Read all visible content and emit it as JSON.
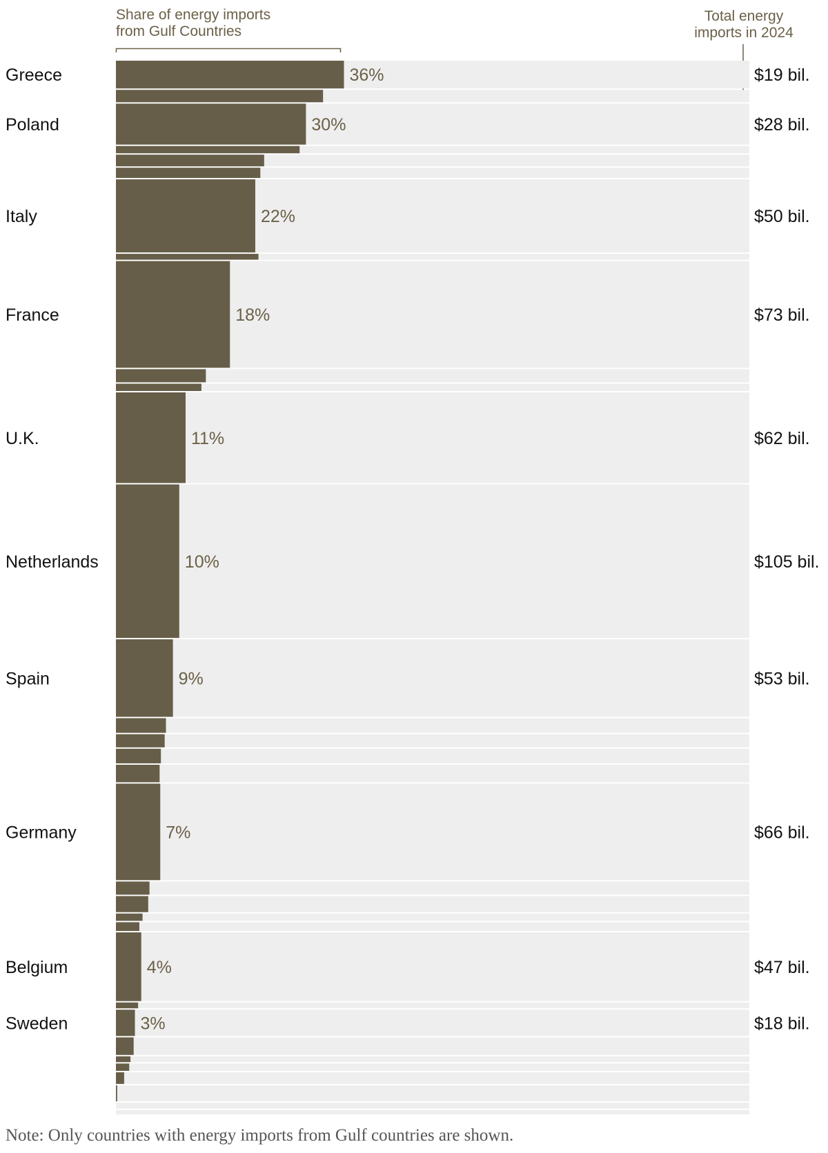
{
  "chart_data": {
    "type": "bar",
    "header_left_line1": "Share of energy imports",
    "header_left_line2": "from Gulf Countries",
    "header_right_line1": "Total energy",
    "header_right_line2": "imports in 2024",
    "note": "Note: Only countries with energy imports from Gulf countries are shown.",
    "bar_color": "#665e48",
    "track_color": "#eeeeee",
    "xlim": [
      0,
      100
    ],
    "rows": [
      {
        "share": 36,
        "total": 19,
        "country": "Greece",
        "pct_label": "36%",
        "total_label": "$19 bil."
      },
      {
        "share": 32.7,
        "total": 8.5
      },
      {
        "share": 30,
        "total": 28,
        "country": "Poland",
        "pct_label": "30%",
        "total_label": "$28 bil."
      },
      {
        "share": 29,
        "total": 5
      },
      {
        "share": 23.4,
        "total": 8
      },
      {
        "share": 22.8,
        "total": 7
      },
      {
        "share": 22,
        "total": 50,
        "country": "Italy",
        "pct_label": "22%",
        "total_label": "$50 bil."
      },
      {
        "share": 22.5,
        "total": 4
      },
      {
        "share": 18,
        "total": 73,
        "country": "France",
        "pct_label": "18%",
        "total_label": "$73 bil."
      },
      {
        "share": 14.2,
        "total": 9
      },
      {
        "share": 13.5,
        "total": 5
      },
      {
        "share": 11,
        "total": 62,
        "country": "U.K.",
        "pct_label": "11%",
        "total_label": "$62 bil."
      },
      {
        "share": 10,
        "total": 105,
        "country": "Netherlands",
        "pct_label": "10%",
        "total_label": "$105 bil."
      },
      {
        "share": 9,
        "total": 53,
        "country": "Spain",
        "pct_label": "9%",
        "total_label": "$53 bil."
      },
      {
        "share": 7.9,
        "total": 10
      },
      {
        "share": 7.7,
        "total": 9
      },
      {
        "share": 7.1,
        "total": 10
      },
      {
        "share": 6.9,
        "total": 12
      },
      {
        "share": 7,
        "total": 66,
        "country": "Germany",
        "pct_label": "7%",
        "total_label": "$66 bil."
      },
      {
        "share": 5.3,
        "total": 9
      },
      {
        "share": 5.1,
        "total": 11
      },
      {
        "share": 4.2,
        "total": 5
      },
      {
        "share": 3.7,
        "total": 6
      },
      {
        "share": 4,
        "total": 47,
        "country": "Belgium",
        "pct_label": "4%",
        "total_label": "$47 bil."
      },
      {
        "share": 3.5,
        "total": 4
      },
      {
        "share": 3,
        "total": 18,
        "country": "Sweden",
        "pct_label": "3%",
        "total_label": "$18 bil."
      },
      {
        "share": 2.8,
        "total": 12
      },
      {
        "share": 2.3,
        "total": 4
      },
      {
        "share": 2.1,
        "total": 5
      },
      {
        "share": 1.3,
        "total": 8
      },
      {
        "share": 0.2,
        "total": 11
      },
      {
        "share": 0,
        "total": 4
      },
      {
        "share": 0,
        "total": 3
      }
    ]
  }
}
